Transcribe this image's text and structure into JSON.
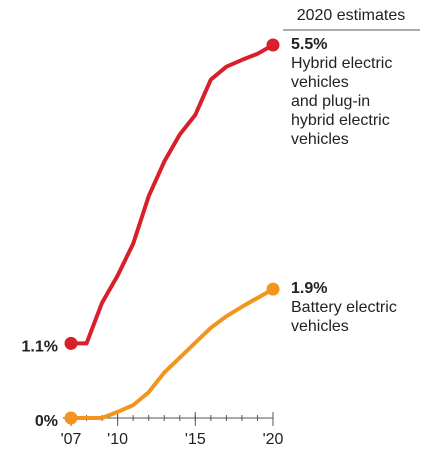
{
  "chart_data": {
    "type": "line",
    "title": "2020 estimates",
    "x": [
      2007,
      2008,
      2009,
      2010,
      2011,
      2012,
      2013,
      2014,
      2015,
      2016,
      2017,
      2018,
      2019,
      2020
    ],
    "xlim": [
      2007,
      2020
    ],
    "xticks": [
      {
        "value": 2007,
        "label": "'07"
      },
      {
        "value": 2010,
        "label": "'10"
      },
      {
        "value": 2015,
        "label": "'15"
      },
      {
        "value": 2020,
        "label": "'20"
      }
    ],
    "ylim": [
      0,
      5.5
    ],
    "yticks": [
      {
        "value": 0,
        "label": "0%"
      },
      {
        "value": 1.1,
        "label": "1.1%"
      }
    ],
    "series": [
      {
        "name": "Hybrid electric\nvehicles\nand plug-in\nhybrid electric\nvehicles",
        "color": "#d7202a",
        "values": [
          1.1,
          1.1,
          1.7,
          2.1,
          2.57,
          3.27,
          3.78,
          4.18,
          4.47,
          4.99,
          5.18,
          5.28,
          5.37,
          5.5
        ],
        "value_labels": [
          null,
          null,
          null,
          null,
          null,
          null,
          null,
          null,
          null,
          null,
          null,
          null,
          null,
          "5.5%"
        ]
      },
      {
        "name": "Battery electric\nvehicles",
        "color": "#f3941f",
        "values": [
          0,
          0,
          0,
          0.09,
          0.19,
          0.38,
          0.67,
          0.89,
          1.11,
          1.33,
          1.5,
          1.64,
          1.77,
          1.9
        ],
        "value_labels": [
          null,
          null,
          null,
          null,
          null,
          null,
          null,
          null,
          null,
          null,
          null,
          null,
          null,
          "1.9%"
        ]
      }
    ]
  }
}
